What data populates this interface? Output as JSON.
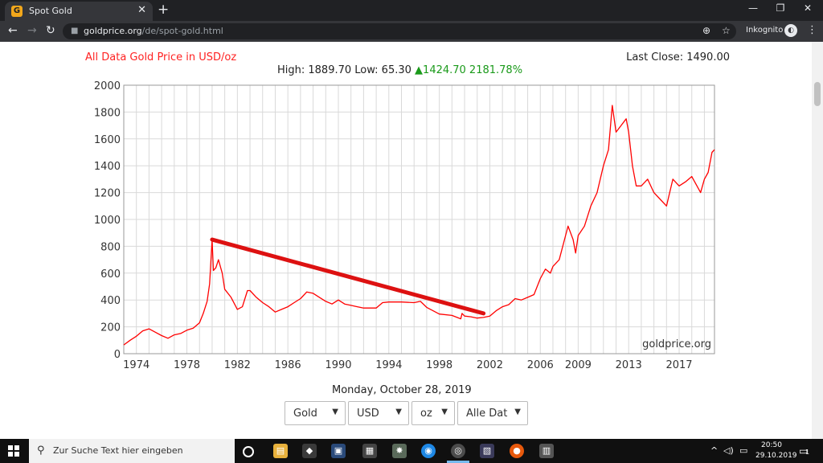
{
  "browser": {
    "tab_title": "Spot Gold",
    "tab_favicon": "G",
    "url_domain": "goldprice.org",
    "url_path": "/de/spot-gold.html",
    "incognito_label": "Inkognito"
  },
  "page": {
    "chart_title": "All Data Gold Price in USD/oz",
    "last_close": "Last Close: 1490.00",
    "high_low": "High: 1889.70 Low: 65.30",
    "change": "▲1424.70 2181.78%",
    "watermark": "goldprice.org",
    "date": "Monday, October 28, 2019",
    "selects": [
      {
        "value": "Gold"
      },
      {
        "value": "USD"
      },
      {
        "value": "oz"
      },
      {
        "value": "Alle Dat"
      }
    ]
  },
  "chart_data": {
    "type": "line",
    "title": "All Data Gold Price in USD/oz",
    "ylim": [
      0,
      2000
    ],
    "xlim": [
      1973,
      2019.8
    ],
    "y_ticks": [
      "0",
      "200",
      "400",
      "600",
      "800",
      "1000",
      "1200",
      "1400",
      "1600",
      "1800",
      "2000"
    ],
    "x_ticks": [
      "1974",
      "1978",
      "1982",
      "1986",
      "1990",
      "1994",
      "1998",
      "2002",
      "2006",
      "2009",
      "2013",
      "2017"
    ],
    "grid": true,
    "series": [
      {
        "color": "#ff0000",
        "x": [
          1973.0,
          1973.5,
          1974.0,
          1974.5,
          1975.0,
          1975.5,
          1976.0,
          1976.5,
          1977.0,
          1977.5,
          1978.0,
          1978.5,
          1979.0,
          1979.3,
          1979.6,
          1979.8,
          1980.0,
          1980.1,
          1980.3,
          1980.5,
          1980.8,
          1981.0,
          1981.5,
          1982.0,
          1982.4,
          1982.8,
          1983.0,
          1983.5,
          1984.0,
          1984.5,
          1985.0,
          1985.5,
          1986.0,
          1986.5,
          1987.0,
          1987.5,
          1988.0,
          1988.5,
          1989.0,
          1989.5,
          1990.0,
          1990.5,
          1991.0,
          1991.5,
          1992.0,
          1993.0,
          1993.5,
          1994.0,
          1995.0,
          1996.0,
          1996.5,
          1997.0,
          1997.5,
          1998.0,
          1999.0,
          1999.7,
          1999.8,
          2000.0,
          2000.5,
          2001.0,
          2001.5,
          2002.0,
          2002.5,
          2003.0,
          2003.5,
          2004.0,
          2004.5,
          2005.0,
          2005.5,
          2006.0,
          2006.4,
          2006.8,
          2007.0,
          2007.5,
          2008.0,
          2008.2,
          2008.6,
          2008.8,
          2009.0,
          2009.5,
          2010.0,
          2010.5,
          2011.0,
          2011.4,
          2011.7,
          2012.0,
          2012.4,
          2012.8,
          2013.0,
          2013.3,
          2013.6,
          2014.0,
          2014.5,
          2015.0,
          2015.5,
          2016.0,
          2016.5,
          2017.0,
          2017.5,
          2018.0,
          2018.7,
          2019.0,
          2019.3,
          2019.6,
          2019.8
        ],
        "y": [
          65,
          100,
          130,
          170,
          185,
          160,
          135,
          115,
          140,
          150,
          175,
          190,
          230,
          300,
          390,
          520,
          850,
          620,
          640,
          700,
          600,
          480,
          420,
          330,
          350,
          470,
          470,
          420,
          380,
          350,
          310,
          330,
          350,
          380,
          410,
          460,
          450,
          420,
          390,
          370,
          400,
          370,
          360,
          350,
          340,
          340,
          380,
          385,
          385,
          380,
          390,
          345,
          320,
          295,
          285,
          260,
          300,
          280,
          275,
          265,
          270,
          280,
          320,
          350,
          365,
          410,
          400,
          420,
          440,
          560,
          630,
          600,
          650,
          700,
          880,
          950,
          850,
          750,
          880,
          950,
          1100,
          1200,
          1400,
          1520,
          1850,
          1650,
          1700,
          1750,
          1650,
          1400,
          1250,
          1250,
          1300,
          1200,
          1150,
          1100,
          1300,
          1250,
          1280,
          1320,
          1200,
          1300,
          1350,
          1500,
          1520
        ]
      },
      {
        "color": "#dd1111",
        "x": [
          1980.0,
          2001.5
        ],
        "y": [
          850,
          300
        ]
      }
    ]
  },
  "taskbar": {
    "search_placeholder": "Zur Suche Text hier eingeben",
    "time": "20:50",
    "date": "29.10.2019",
    "notification_count": "1"
  }
}
